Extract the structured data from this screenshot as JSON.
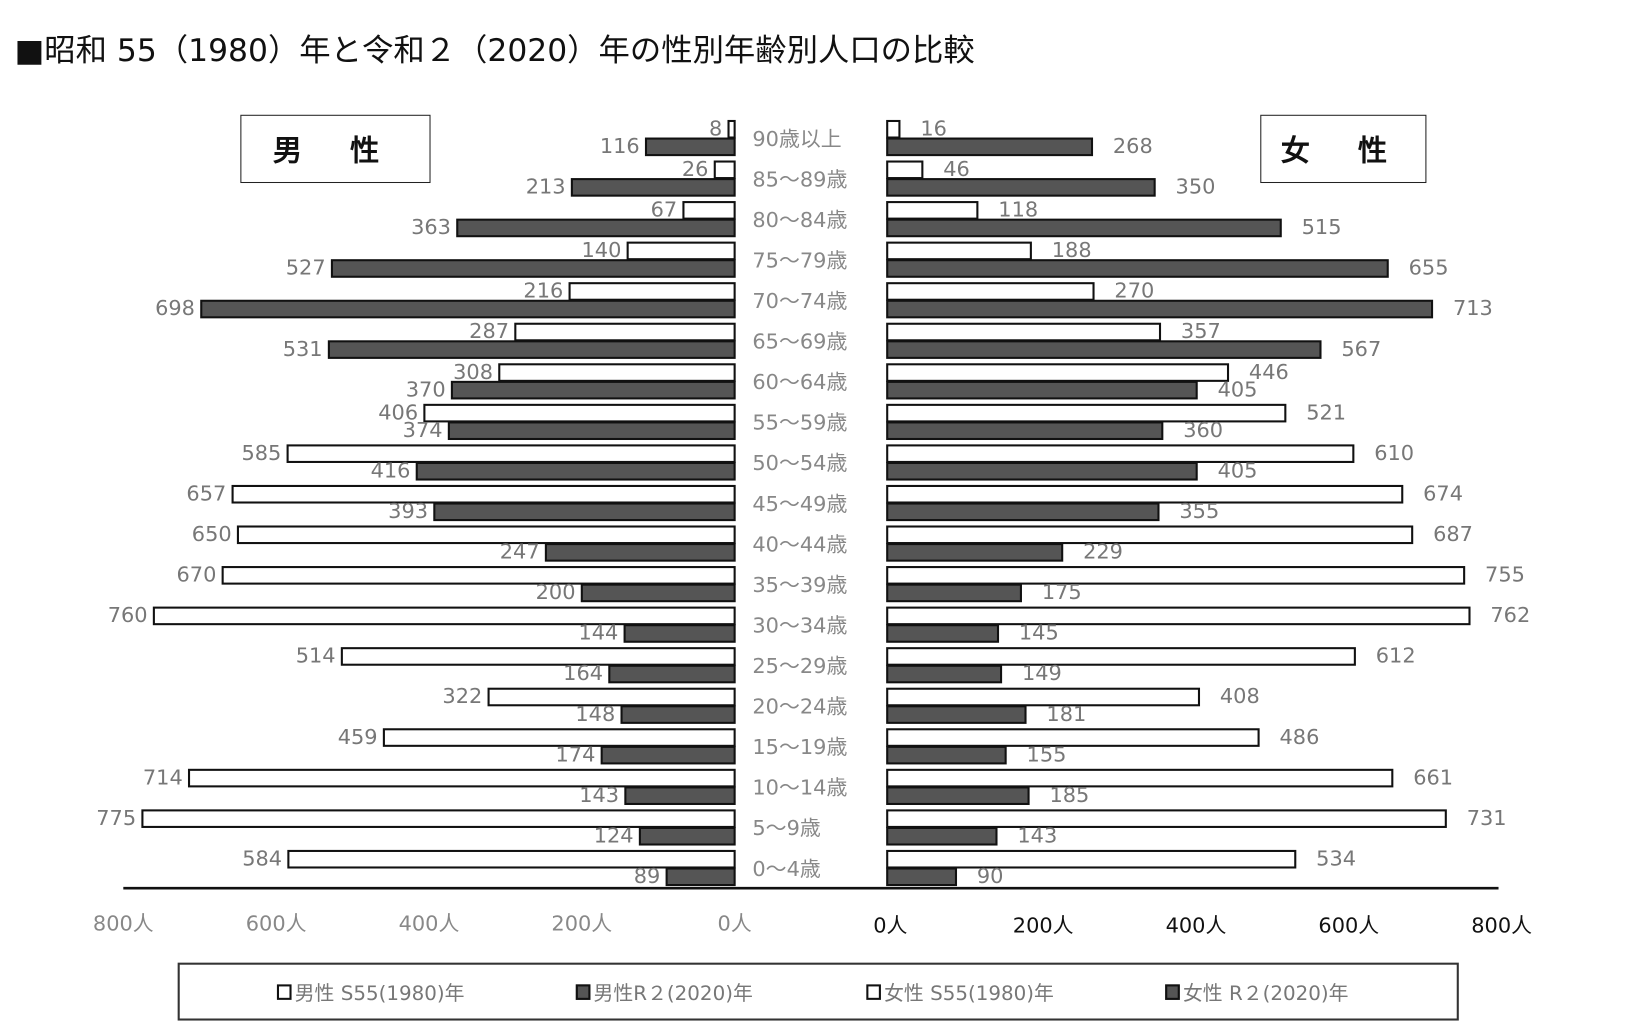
{
  "title": "■昭和 55（1980）年と令和２（2020）年の性別年齢別人口の比較",
  "male_label": "男 性",
  "female_label": "女 性",
  "chart_data": {
    "type": "bar",
    "orientation": "horizontal-pyramid",
    "title": "■昭和 55（1980）年と令和２（2020）年の性別年齢別人口の比較",
    "categories": [
      "90歳以上",
      "85～89歳",
      "80～84歳",
      "75～79歳",
      "70～74歳",
      "65～69歳",
      "60～64歳",
      "55～59歳",
      "50～54歳",
      "45～49歳",
      "40～44歳",
      "35～39歳",
      "30～34歳",
      "25～29歳",
      "20～24歳",
      "15～19歳",
      "10～14歳",
      "5～9歳",
      "0～4歳"
    ],
    "series": [
      {
        "name": "男性 S55(1980)年",
        "side": "left",
        "color": "#ffffff",
        "values": [
          8,
          26,
          67,
          140,
          216,
          287,
          308,
          406,
          585,
          657,
          650,
          670,
          760,
          514,
          322,
          459,
          714,
          775,
          584
        ]
      },
      {
        "name": "男性R２(2020)年",
        "side": "left",
        "color": "#555555",
        "values": [
          116,
          213,
          363,
          527,
          698,
          531,
          370,
          374,
          416,
          393,
          247,
          200,
          144,
          164,
          148,
          174,
          143,
          124,
          89
        ]
      },
      {
        "name": "女性 S55(1980)年",
        "side": "right",
        "color": "#ffffff",
        "values": [
          16,
          46,
          118,
          188,
          270,
          357,
          446,
          521,
          610,
          674,
          687,
          755,
          762,
          612,
          408,
          486,
          661,
          731,
          534
        ]
      },
      {
        "name": "女性 R２(2020)年",
        "side": "right",
        "color": "#555555",
        "values": [
          268,
          350,
          515,
          655,
          713,
          567,
          405,
          360,
          405,
          355,
          229,
          175,
          145,
          149,
          181,
          155,
          185,
          143,
          90
        ]
      }
    ],
    "xlim": [
      0,
      800
    ],
    "male_ticks": [
      "800人",
      "600人",
      "400人",
      "200人",
      "0人"
    ],
    "female_ticks": [
      "0人",
      "200人",
      "400人",
      "600人",
      "800人"
    ],
    "legend_position": "bottom",
    "grid": false
  }
}
